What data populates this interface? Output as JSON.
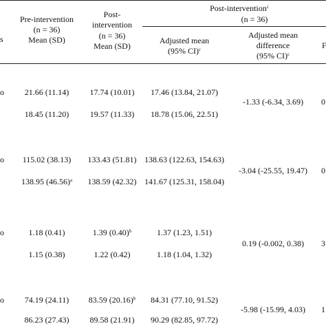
{
  "header": {
    "col0_fragment": "s",
    "pre": {
      "line1": "Pre-intervention",
      "line2": "(n = 36)",
      "line3": "Mean (SD)"
    },
    "post": {
      "line1": "Post-",
      "line2": "intervention",
      "line3": "(n = 36)",
      "line4": "Mean (SD)"
    },
    "post_group": {
      "title": "Post-intervention",
      "title_sup": "c",
      "n": "(n = 36)"
    },
    "adj_mean": {
      "line1": "Adjusted mean",
      "line2": "(95% CI)",
      "line2_sup": "c"
    },
    "adj_diff": {
      "line1": "Adjusted mean",
      "line2": "difference",
      "line3": "(95% CI)",
      "line3_sup": "c"
    },
    "edge_col": "F"
  },
  "rows": [
    {
      "pre": "21.66 (11.14)",
      "pre_sup": "",
      "post": "17.74 (10.01)",
      "post_sup": "",
      "adj": "17.46 (13.84, 21.07)"
    },
    {
      "pre": "18.45 (11.20)",
      "pre_sup": "",
      "post": "19.57 (11.33)",
      "post_sup": "",
      "adj": "18.78 (15.06, 22.51)"
    },
    {
      "pre": "115.02 (38.13)",
      "pre_sup": "",
      "post": "133.43 (51.81)",
      "post_sup": "",
      "adj": "138.63 (122.63, 154.63)"
    },
    {
      "pre": "138.95 (46.56)",
      "pre_sup": "a",
      "post": "138.59 (42.32)",
      "post_sup": "",
      "adj": "141.67 (125.31, 158.04)"
    },
    {
      "pre": "1.18 (0.41)",
      "pre_sup": "",
      "post": "1.39 (0.40)",
      "post_sup": "b",
      "adj": "1.37 (1.23, 1.51)"
    },
    {
      "pre": "1.15 (0.38)",
      "pre_sup": "",
      "post": "1.22 (0.42)",
      "post_sup": "",
      "adj": "1.18 (1.04, 1.32)"
    },
    {
      "pre": "74.19 (24.11)",
      "pre_sup": "",
      "post": "83.59 (20.16)",
      "post_sup": "b",
      "adj": "84.31 (77.10, 91.52)"
    },
    {
      "pre": "86.23 (27.43)",
      "pre_sup": "",
      "post": "89.58 (21.91)",
      "post_sup": "",
      "adj": "90.29 (82.85, 97.72)"
    }
  ],
  "diffs": [
    {
      "value": "-1.33 (-6.34, 3.69)",
      "edge": "0"
    },
    {
      "value": "-3.04 (-25.55, 19.47)",
      "edge": "0"
    },
    {
      "value": "0.19 (-0.002, 0.38)",
      "edge": "3"
    },
    {
      "value": "-5.98 (-15.99, 4.03)",
      "edge": "1"
    }
  ],
  "left_markers": [
    "o",
    "o",
    "o",
    "o"
  ]
}
